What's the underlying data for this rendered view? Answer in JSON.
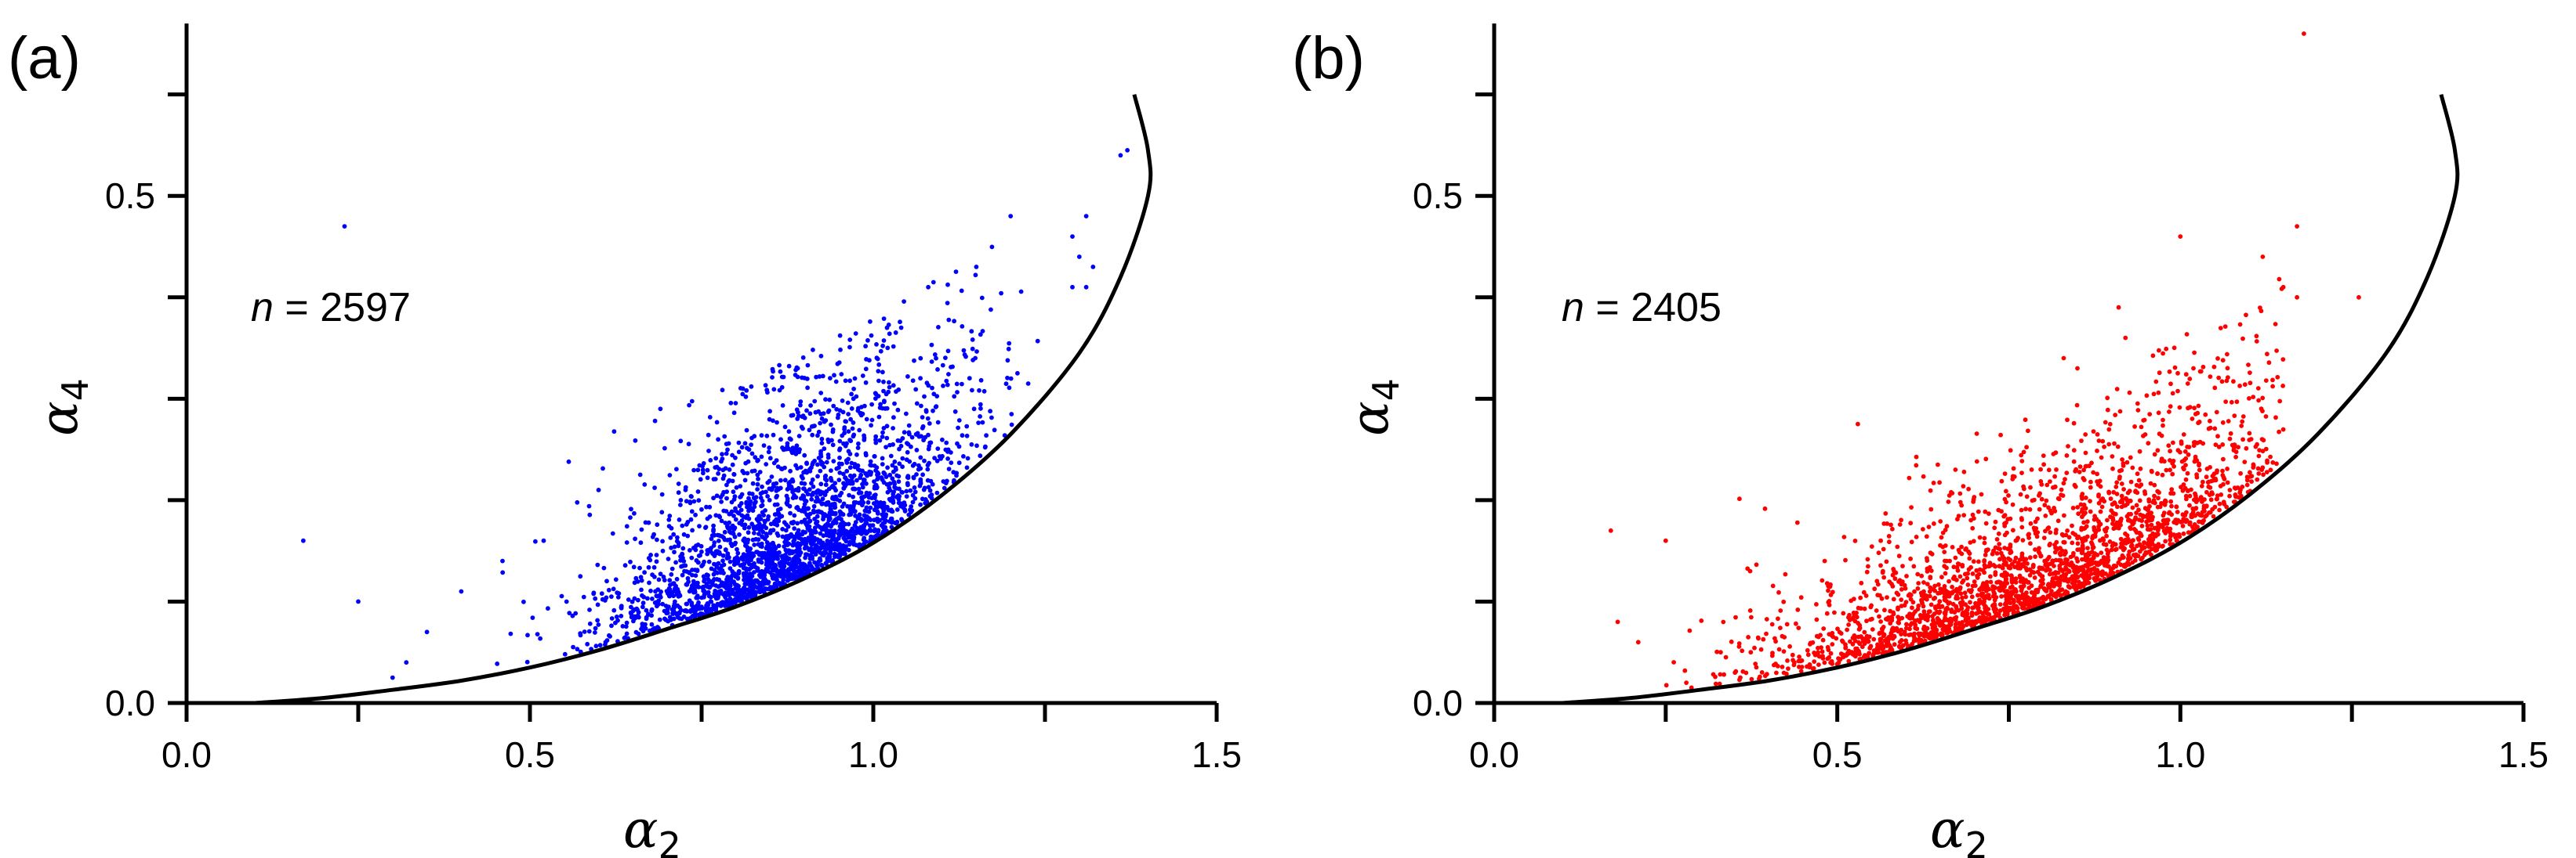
{
  "chart_data": [
    {
      "type": "scatter",
      "panel_label": "(a)",
      "color": "#0000ff",
      "annotation": {
        "var": "n",
        "eq": " = ",
        "value": "2597"
      },
      "xlabel": {
        "base": "α",
        "sub": "2"
      },
      "ylabel": {
        "base": "α",
        "sub": "4"
      },
      "xlim": [
        0.0,
        1.5
      ],
      "ylim": [
        0.0,
        0.67
      ],
      "x_ticks": [
        0.0,
        0.5,
        1.0,
        1.5
      ],
      "x_tick_labels": [
        "0.0",
        "0.5",
        "1.0",
        "1.5"
      ],
      "x_minor_ticks": [
        0.25,
        0.75,
        1.25
      ],
      "y_ticks": [
        0.0,
        0.5
      ],
      "y_tick_labels": [
        "0.0",
        "0.5"
      ],
      "y_minor_ticks": [
        0.1,
        0.2,
        0.3,
        0.4,
        0.6
      ],
      "grid": false,
      "boundary": {
        "description": "lower bound curve",
        "points": [
          [
            0.1,
            0.0
          ],
          [
            0.2,
            0.005
          ],
          [
            0.3,
            0.013
          ],
          [
            0.4,
            0.022
          ],
          [
            0.5,
            0.035
          ],
          [
            0.6,
            0.052
          ],
          [
            0.7,
            0.073
          ],
          [
            0.8,
            0.095
          ],
          [
            0.9,
            0.123
          ],
          [
            1.0,
            0.158
          ],
          [
            1.1,
            0.205
          ],
          [
            1.2,
            0.265
          ],
          [
            1.3,
            0.345
          ],
          [
            1.36,
            0.42
          ],
          [
            1.4,
            0.5
          ],
          [
            1.4,
            0.545
          ],
          [
            1.38,
            0.6
          ]
        ]
      },
      "outliers": [
        [
          0.23,
          0.47
        ],
        [
          0.17,
          0.16
        ],
        [
          0.25,
          0.1
        ],
        [
          0.69,
          0.29
        ],
        [
          0.81,
          0.31
        ],
        [
          1.36,
          0.54
        ],
        [
          1.37,
          0.545
        ],
        [
          1.2,
          0.48
        ],
        [
          1.29,
          0.46
        ],
        [
          1.31,
          0.48
        ],
        [
          1.3,
          0.44
        ],
        [
          1.32,
          0.43
        ],
        [
          1.29,
          0.41
        ],
        [
          1.31,
          0.41
        ],
        [
          1.15,
          0.43
        ],
        [
          1.08,
          0.41
        ],
        [
          1.02,
          0.37
        ],
        [
          0.89,
          0.33
        ],
        [
          0.6,
          0.21
        ],
        [
          0.52,
          0.16
        ],
        [
          0.46,
          0.14
        ],
        [
          0.4,
          0.11
        ],
        [
          0.35,
          0.07
        ],
        [
          0.32,
          0.04
        ],
        [
          0.3,
          0.025
        ]
      ],
      "cluster": {
        "count": 2572,
        "x_range": [
          0.3,
          1.25
        ],
        "center_x": 0.88,
        "spread_x": 0.13,
        "spread_above": 0.06,
        "max_above": 0.22
      }
    },
    {
      "type": "scatter",
      "panel_label": "(b)",
      "color": "#ff0000",
      "annotation": {
        "var": "n",
        "eq": " = ",
        "value": "2405"
      },
      "xlabel": {
        "base": "α",
        "sub": "2"
      },
      "ylabel": {
        "base": "α",
        "sub": "4"
      },
      "xlim": [
        0.0,
        1.5
      ],
      "ylim": [
        0.0,
        0.67
      ],
      "x_ticks": [
        0.0,
        0.5,
        1.0,
        1.5
      ],
      "x_tick_labels": [
        "0.0",
        "0.5",
        "1.0",
        "1.5"
      ],
      "x_minor_ticks": [
        0.25,
        0.75,
        1.25
      ],
      "y_ticks": [
        0.0,
        0.5
      ],
      "y_tick_labels": [
        "0.0",
        "0.5"
      ],
      "y_minor_ticks": [
        0.1,
        0.2,
        0.3,
        0.4,
        0.6
      ],
      "grid": false,
      "boundary": {
        "description": "lower bound curve",
        "points": [
          [
            0.1,
            0.0
          ],
          [
            0.2,
            0.005
          ],
          [
            0.3,
            0.013
          ],
          [
            0.4,
            0.022
          ],
          [
            0.5,
            0.035
          ],
          [
            0.6,
            0.052
          ],
          [
            0.7,
            0.073
          ],
          [
            0.8,
            0.095
          ],
          [
            0.9,
            0.123
          ],
          [
            1.0,
            0.158
          ],
          [
            1.1,
            0.205
          ],
          [
            1.2,
            0.265
          ],
          [
            1.3,
            0.345
          ],
          [
            1.36,
            0.42
          ],
          [
            1.4,
            0.5
          ],
          [
            1.4,
            0.545
          ],
          [
            1.38,
            0.6
          ]
        ]
      },
      "outliers": [
        [
          1.18,
          0.66
        ],
        [
          1.17,
          0.47
        ],
        [
          1.26,
          0.4
        ],
        [
          1.17,
          0.4
        ],
        [
          1.0,
          0.46
        ],
        [
          0.91,
          0.39
        ],
        [
          1.15,
          0.41
        ],
        [
          1.12,
          0.44
        ],
        [
          0.17,
          0.17
        ],
        [
          0.18,
          0.08
        ],
        [
          0.21,
          0.06
        ],
        [
          0.25,
          0.16
        ],
        [
          0.53,
          0.275
        ],
        [
          0.83,
          0.34
        ],
        [
          0.85,
          0.33
        ],
        [
          0.92,
          0.36
        ],
        [
          0.33,
          0.05
        ],
        [
          0.28,
          0.02
        ]
      ],
      "cluster": {
        "count": 2387,
        "x_range": [
          0.2,
          1.15
        ],
        "center_x": 0.8,
        "spread_x": 0.2,
        "spread_above": 0.045,
        "max_above": 0.2
      }
    }
  ]
}
